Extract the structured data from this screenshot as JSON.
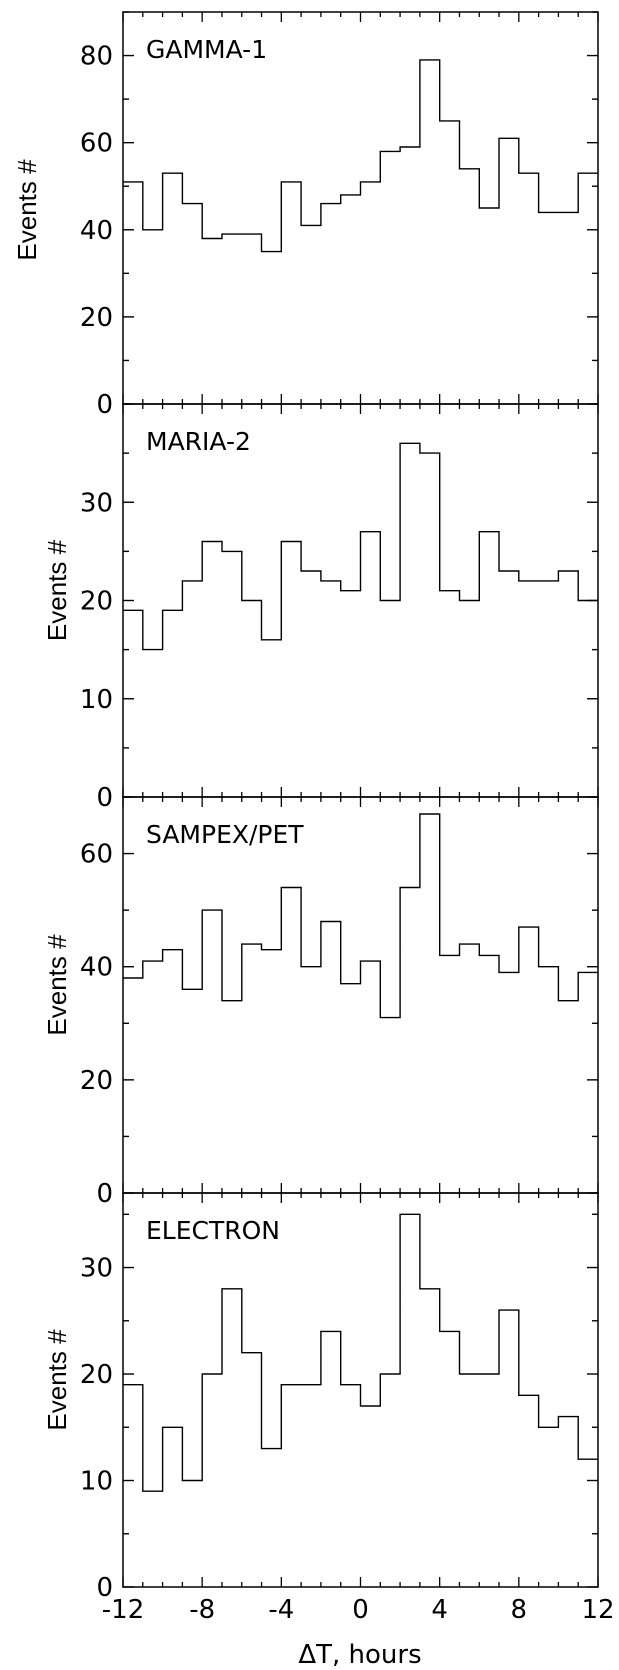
{
  "x_axis_label": "ΔT, hours",
  "chart_data": [
    {
      "type": "histogram",
      "title": "GAMMA-1",
      "ylabel": "Events #",
      "xlim": [
        -12,
        12
      ],
      "ylim": [
        0,
        90
      ],
      "yticks": [
        0,
        20,
        40,
        60,
        80
      ],
      "bin_edges": [
        -12,
        -11,
        -10,
        -9,
        -8,
        -7,
        -6,
        -5,
        -4,
        -3,
        -2,
        -1,
        0,
        1,
        2,
        3,
        4,
        5,
        6,
        7,
        8,
        9,
        10,
        11,
        12
      ],
      "values": [
        51,
        40,
        53,
        46,
        38,
        39,
        39,
        35,
        51,
        41,
        46,
        48,
        51,
        58,
        59,
        79,
        65,
        54,
        45,
        61,
        53,
        44,
        44,
        53
      ]
    },
    {
      "type": "histogram",
      "title": "MARIA-2",
      "ylabel": "Events #",
      "xlim": [
        -12,
        12
      ],
      "ylim": [
        0,
        40
      ],
      "yticks": [
        0,
        10,
        20,
        30
      ],
      "bin_edges": [
        -12,
        -11,
        -10,
        -9,
        -8,
        -7,
        -6,
        -5,
        -4,
        -3,
        -2,
        -1,
        0,
        1,
        2,
        3,
        4,
        5,
        6,
        7,
        8,
        9,
        10,
        11,
        12
      ],
      "values": [
        19,
        15,
        19,
        22,
        26,
        25,
        20,
        16,
        26,
        23,
        22,
        21,
        27,
        20,
        36,
        35,
        21,
        20,
        27,
        23,
        22,
        22,
        23,
        20
      ]
    },
    {
      "type": "histogram",
      "title": "SAMPEX/PET",
      "ylabel": "Events #",
      "xlim": [
        -12,
        12
      ],
      "ylim": [
        0,
        70
      ],
      "yticks": [
        0,
        20,
        40,
        60
      ],
      "bin_edges": [
        -12,
        -11,
        -10,
        -9,
        -8,
        -7,
        -6,
        -5,
        -4,
        -3,
        -2,
        -1,
        0,
        1,
        2,
        3,
        4,
        5,
        6,
        7,
        8,
        9,
        10,
        11,
        12
      ],
      "values": [
        38,
        41,
        43,
        36,
        50,
        34,
        44,
        43,
        54,
        40,
        48,
        37,
        41,
        31,
        54,
        67,
        42,
        44,
        42,
        39,
        47,
        40,
        34,
        39
      ]
    },
    {
      "type": "histogram",
      "title": "ELECTRON",
      "ylabel": "Events #",
      "xlim": [
        -12,
        12
      ],
      "ylim": [
        0,
        37
      ],
      "yticks": [
        0,
        10,
        20,
        30
      ],
      "xticks": [
        -12,
        -8,
        -4,
        0,
        4,
        8,
        12
      ],
      "bin_edges": [
        -12,
        -11,
        -10,
        -9,
        -8,
        -7,
        -6,
        -5,
        -4,
        -3,
        -2,
        -1,
        0,
        1,
        2,
        3,
        4,
        5,
        6,
        7,
        8,
        9,
        10,
        11,
        12
      ],
      "values": [
        19,
        9,
        15,
        10,
        20,
        28,
        22,
        13,
        19,
        19,
        24,
        19,
        17,
        20,
        35,
        28,
        24,
        20,
        20,
        26,
        18,
        15,
        16,
        12
      ]
    }
  ]
}
